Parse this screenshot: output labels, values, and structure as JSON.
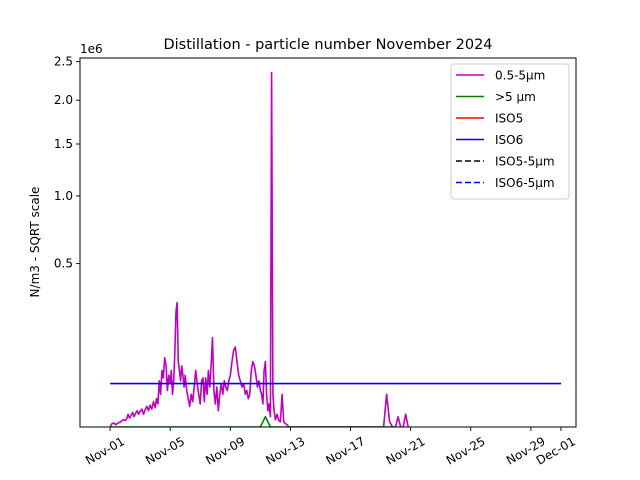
{
  "chart_data": {
    "type": "line",
    "title": "Distillation - particle number November 2024",
    "xlabel": "",
    "ylabel": "N/m3 - SQRT scale",
    "y_scale": "sqrt",
    "y_offset_label": "1e6",
    "xlim": [
      "2024-10-30",
      "2024-12-02"
    ],
    "ylim": [
      0,
      2550000
    ],
    "grid": false,
    "legend_position": "top-right",
    "x_ticks": [
      {
        "date": "2024-11-01",
        "label": "Nov-01"
      },
      {
        "date": "2024-11-05",
        "label": "Nov-05"
      },
      {
        "date": "2024-11-09",
        "label": "Nov-09"
      },
      {
        "date": "2024-11-13",
        "label": "Nov-13"
      },
      {
        "date": "2024-11-17",
        "label": "Nov-17"
      },
      {
        "date": "2024-11-21",
        "label": "Nov-21"
      },
      {
        "date": "2024-11-25",
        "label": "Nov-25"
      },
      {
        "date": "2024-11-29",
        "label": "Nov-29"
      },
      {
        "date": "2024-12-01",
        "label": "Dec-01"
      }
    ],
    "y_ticks": [
      {
        "value": 500000,
        "label": "0.5"
      },
      {
        "value": 1000000,
        "label": "1.0"
      },
      {
        "value": 1500000,
        "label": "1.5"
      },
      {
        "value": 2000000,
        "label": "2.0"
      },
      {
        "value": 2500000,
        "label": "2.5"
      }
    ],
    "series": [
      {
        "name": "0.5-5µm",
        "color": "#bf00bf",
        "style": "solid",
        "points": [
          [
            "2024-11-01",
            0
          ],
          [
            "2024-11-01",
            200
          ],
          [
            "2024-11-01",
            300
          ],
          [
            "2024-11-01",
            100
          ],
          [
            "2024-11-01",
            250
          ],
          [
            "2024-11-01",
            400
          ],
          [
            "2024-11-01",
            600
          ],
          [
            "2024-11-01",
            1000
          ],
          [
            "2024-11-02",
            800
          ],
          [
            "2024-11-02",
            1200
          ],
          [
            "2024-11-02",
            3000
          ],
          [
            "2024-11-02",
            1500
          ],
          [
            "2024-11-02",
            2500
          ],
          [
            "2024-11-02",
            4000
          ],
          [
            "2024-11-02",
            2000
          ],
          [
            "2024-11-02",
            3500
          ],
          [
            "2024-11-02",
            5000
          ],
          [
            "2024-11-02",
            3000
          ],
          [
            "2024-11-03",
            4500
          ],
          [
            "2024-11-03",
            6000
          ],
          [
            "2024-11-03",
            3000
          ],
          [
            "2024-11-03",
            5500
          ],
          [
            "2024-11-03",
            8000
          ],
          [
            "2024-11-03",
            5000
          ],
          [
            "2024-11-03",
            9000
          ],
          [
            "2024-11-03",
            6000
          ],
          [
            "2024-11-03",
            12000
          ],
          [
            "2024-11-04",
            7000
          ],
          [
            "2024-11-04",
            15000
          ],
          [
            "2024-11-04",
            10000
          ],
          [
            "2024-11-04",
            40000
          ],
          [
            "2024-11-04",
            20000
          ],
          [
            "2024-11-04",
            60000
          ],
          [
            "2024-11-04",
            45000
          ],
          [
            "2024-11-04",
            90000
          ],
          [
            "2024-11-04",
            70000
          ],
          [
            "2024-11-04",
            25000
          ],
          [
            "2024-11-04",
            50000
          ],
          [
            "2024-11-05",
            35000
          ],
          [
            "2024-11-05",
            60000
          ],
          [
            "2024-11-05",
            20000
          ],
          [
            "2024-11-05",
            40000
          ],
          [
            "2024-11-05",
            100000
          ],
          [
            "2024-11-05",
            250000
          ],
          [
            "2024-11-05",
            290000
          ],
          [
            "2024-11-05",
            80000
          ],
          [
            "2024-11-05",
            60000
          ],
          [
            "2024-11-05",
            40000
          ],
          [
            "2024-11-05",
            70000
          ],
          [
            "2024-11-05",
            50000
          ],
          [
            "2024-11-05",
            30000
          ],
          [
            "2024-11-06",
            50000
          ],
          [
            "2024-11-06",
            25000
          ],
          [
            "2024-11-06",
            15000
          ],
          [
            "2024-11-06",
            8000
          ],
          [
            "2024-11-06",
            20000
          ],
          [
            "2024-11-06",
            12000
          ],
          [
            "2024-11-06",
            30000
          ],
          [
            "2024-11-06",
            60000
          ],
          [
            "2024-11-06",
            35000
          ],
          [
            "2024-11-06",
            20000
          ],
          [
            "2024-11-07",
            10000
          ],
          [
            "2024-11-07",
            40000
          ],
          [
            "2024-11-07",
            45000
          ],
          [
            "2024-11-07",
            12000
          ],
          [
            "2024-11-07",
            45000
          ],
          [
            "2024-11-07",
            20000
          ],
          [
            "2024-11-07",
            60000
          ],
          [
            "2024-11-07",
            30000
          ],
          [
            "2024-11-07",
            75000
          ],
          [
            "2024-11-07",
            150000
          ],
          [
            "2024-11-07",
            25000
          ],
          [
            "2024-11-08",
            10000
          ],
          [
            "2024-11-08",
            30000
          ],
          [
            "2024-11-08",
            5000
          ],
          [
            "2024-11-08",
            20000
          ],
          [
            "2024-11-08",
            35000
          ],
          [
            "2024-11-08",
            20000
          ],
          [
            "2024-11-08",
            40000
          ],
          [
            "2024-11-08",
            30000
          ],
          [
            "2024-11-08",
            25000
          ],
          [
            "2024-11-08",
            40000
          ],
          [
            "2024-11-09",
            50000
          ],
          [
            "2024-11-09",
            80000
          ],
          [
            "2024-11-09",
            110000
          ],
          [
            "2024-11-09",
            120000
          ],
          [
            "2024-11-09",
            80000
          ],
          [
            "2024-11-09",
            50000
          ],
          [
            "2024-11-09",
            40000
          ],
          [
            "2024-11-09",
            30000
          ],
          [
            "2024-11-09",
            35000
          ],
          [
            "2024-11-10",
            20000
          ],
          [
            "2024-11-10",
            25000
          ],
          [
            "2024-11-10",
            15000
          ],
          [
            "2024-11-10",
            20000
          ],
          [
            "2024-11-10",
            60000
          ],
          [
            "2024-11-10",
            80000
          ],
          [
            "2024-11-10",
            70000
          ],
          [
            "2024-11-10",
            50000
          ],
          [
            "2024-11-10",
            30000
          ],
          [
            "2024-11-10",
            40000
          ],
          [
            "2024-11-11",
            25000
          ],
          [
            "2024-11-11",
            20000
          ],
          [
            "2024-11-11",
            10000
          ],
          [
            "2024-11-11",
            60000
          ],
          [
            "2024-11-11",
            80000
          ],
          [
            "2024-11-11",
            20000
          ],
          [
            "2024-11-11",
            5000
          ],
          [
            "2024-11-11",
            10000
          ],
          [
            "2024-11-11",
            2000
          ],
          [
            "2024-11-11",
            2350000
          ],
          [
            "2024-11-11",
            20000
          ],
          [
            "2024-11-11",
            5000
          ],
          [
            "2024-11-12",
            1000
          ],
          [
            "2024-11-12",
            3000
          ],
          [
            "2024-11-12",
            800
          ],
          [
            "2024-11-12",
            500
          ],
          [
            "2024-11-12",
            20000
          ],
          [
            "2024-11-12",
            500
          ],
          [
            "2024-11-12",
            200
          ],
          [
            "2024-11-12",
            100
          ],
          [
            "2024-11-12",
            0
          ],
          [
            "2024-11-19",
            0
          ],
          [
            "2024-11-19",
            0
          ],
          [
            "2024-11-19",
            20000
          ],
          [
            "2024-11-19",
            500
          ],
          [
            "2024-11-19",
            0
          ],
          [
            "2024-11-20",
            0
          ],
          [
            "2024-11-20",
            2000
          ],
          [
            "2024-11-20",
            0
          ],
          [
            "2024-11-20",
            0
          ],
          [
            "2024-11-20",
            3000
          ],
          [
            "2024-11-20",
            0
          ]
        ]
      },
      {
        "name": ">5 µm",
        "color": "#008000",
        "style": "solid",
        "points": [
          [
            "2024-11-01",
            0
          ],
          [
            "2024-11-11",
            0
          ],
          [
            "2024-11-11",
            2000
          ],
          [
            "2024-11-11",
            0
          ],
          [
            "2024-11-20",
            0
          ]
        ]
      },
      {
        "name": "ISO5",
        "color": "#ff0000",
        "style": "solid",
        "points": []
      },
      {
        "name": "ISO6",
        "color": "#0000ff",
        "style": "solid",
        "points": [
          [
            "2024-11-01",
            35200
          ],
          [
            "2024-12-01",
            35200
          ]
        ]
      },
      {
        "name": "ISO5-5µm",
        "color": "#000000",
        "style": "dashed",
        "points": []
      },
      {
        "name": "ISO6-5µm",
        "color": "#0000ff",
        "style": "dashed",
        "points": []
      }
    ]
  }
}
